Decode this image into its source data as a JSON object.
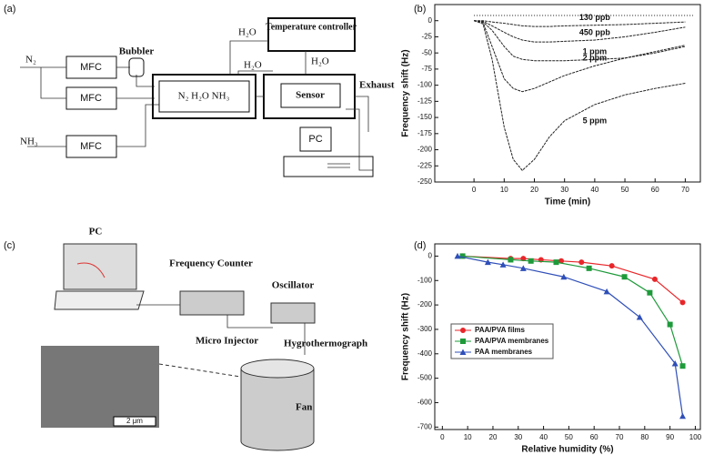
{
  "panels": {
    "a": {
      "label": "(a)",
      "n2": "N₂",
      "mfc1": "MFC",
      "mfc2": "MFC",
      "mfc3": "MFC",
      "nh3": "NH₃",
      "bubbler": "Bubbler",
      "h2o_top": "H₂O",
      "temp": "Temperature controller",
      "h2o_mid": "H₂O",
      "h2o_right": "H₂O",
      "mix": "N₂  H₂O  NH₃",
      "sensor": "Sensor",
      "exhaust": "Exhaust",
      "pc": "PC"
    },
    "b": {
      "label": "(b)"
    },
    "c": {
      "label": "(c)",
      "pc": "PC",
      "counter": "Frequency Counter",
      "oscillator": "Oscillator",
      "injector": "Micro Injector",
      "hygro": "Hygrothermograph",
      "fan": "Fan",
      "scale": "2 μm"
    },
    "d": {
      "label": "(d)"
    }
  },
  "chart_data": [
    {
      "type": "line",
      "y_label": "Frequency shift (Hz)",
      "x_label": "Time (min)",
      "x": [
        0,
        3,
        6,
        10,
        13,
        16,
        20,
        25,
        30,
        40,
        50,
        60,
        70
      ],
      "xlim": [
        -13,
        75
      ],
      "xticks": [
        0,
        10,
        20,
        30,
        40,
        50,
        60,
        70
      ],
      "ylim": [
        -250,
        25
      ],
      "yticks": [
        0,
        -25,
        -50,
        -75,
        -100,
        -125,
        -150,
        -175,
        -200,
        -225,
        -250
      ],
      "series": [
        {
          "name": "130 ppb",
          "color": "#222",
          "values": [
            0,
            0,
            -2,
            -4,
            -6,
            -8,
            -9,
            -9,
            -8,
            -7,
            -6,
            -4,
            -2
          ]
        },
        {
          "name": "450 ppb",
          "color": "#222",
          "values": [
            0,
            -1,
            -8,
            -18,
            -25,
            -30,
            -33,
            -33,
            -32,
            -30,
            -25,
            -18,
            -10
          ]
        },
        {
          "name": "1 ppm",
          "color": "#222",
          "values": [
            0,
            -2,
            -15,
            -40,
            -55,
            -60,
            -62,
            -62,
            -62,
            -60,
            -58,
            -50,
            -40
          ]
        },
        {
          "name": "2 ppm",
          "color": "#222",
          "values": [
            0,
            -3,
            -40,
            -90,
            -105,
            -110,
            -105,
            -95,
            -85,
            -70,
            -58,
            -48,
            -38
          ]
        },
        {
          "name": "5 ppm",
          "color": "#222",
          "values": [
            0,
            -5,
            -60,
            -165,
            -215,
            -232,
            -215,
            -180,
            -155,
            -130,
            -115,
            -105,
            -97
          ]
        }
      ]
    },
    {
      "type": "scatter",
      "y_label": "Frequency shift (Hz)",
      "x_label": "Relative humidity (%)",
      "xlim": [
        -3,
        102
      ],
      "xticks": [
        0,
        10,
        20,
        30,
        40,
        50,
        60,
        70,
        80,
        90,
        100
      ],
      "ylim": [
        -710,
        50
      ],
      "yticks": [
        0,
        -100,
        -200,
        -300,
        -400,
        -500,
        -600,
        -700
      ],
      "legend": "upper left",
      "series": [
        {
          "name": "PAA/PVA films",
          "color": "#e8262a",
          "marker": "circle",
          "x": [
            8,
            27,
            32,
            39,
            47,
            55,
            67,
            84,
            95
          ],
          "values": [
            0,
            -10,
            -10,
            -15,
            -20,
            -25,
            -40,
            -95,
            -190
          ]
        },
        {
          "name": "PAA/PVA membranes",
          "color": "#1e9a3a",
          "marker": "square",
          "x": [
            8,
            27,
            35,
            45,
            58,
            72,
            82,
            90,
            95
          ],
          "values": [
            0,
            -15,
            -20,
            -25,
            -50,
            -85,
            -150,
            -280,
            -450
          ]
        },
        {
          "name": "PAA membranes",
          "color": "#2f4fb8",
          "marker": "triangle",
          "x": [
            6,
            18,
            24,
            32,
            48,
            65,
            78,
            92,
            95
          ],
          "values": [
            0,
            -25,
            -35,
            -50,
            -85,
            -145,
            -250,
            -440,
            -655
          ]
        }
      ]
    }
  ]
}
